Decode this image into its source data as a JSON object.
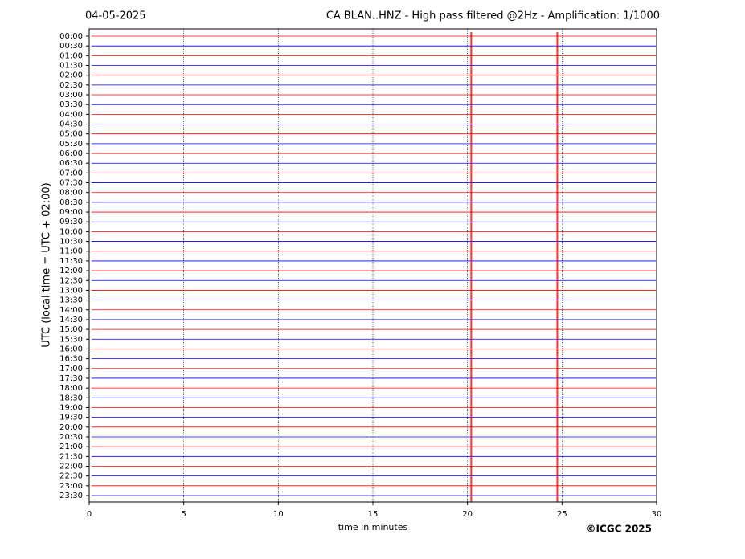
{
  "chart_data": {
    "type": "helicorder",
    "date": "04-05-2025",
    "title": "CA.BLAN..HNZ - High pass filtered @2Hz - Amplification: 1/1000",
    "ylabel": "UTC (local time = UTC + 02:00)",
    "xlabel": "time in minutes",
    "credit": "©ICGC 2025",
    "categories": [
      "00:00",
      "00:30",
      "01:00",
      "01:30",
      "02:00",
      "02:30",
      "03:00",
      "03:30",
      "04:00",
      "04:30",
      "05:00",
      "05:30",
      "06:00",
      "06:30",
      "07:00",
      "07:30",
      "08:00",
      "08:30",
      "09:00",
      "09:30",
      "10:00",
      "10:30",
      "11:00",
      "11:30",
      "12:00",
      "12:30",
      "13:00",
      "13:30",
      "14:00",
      "14:30",
      "15:00",
      "15:30",
      "16:00",
      "16:30",
      "17:00",
      "17:30",
      "18:00",
      "18:30",
      "19:00",
      "19:30",
      "20:00",
      "20:30",
      "21:00",
      "21:30",
      "22:00",
      "22:30",
      "23:00",
      "23:30"
    ],
    "colors": [
      "#ff0000",
      "#0000ff"
    ],
    "xlim": [
      0,
      30
    ],
    "xticks": [
      0,
      5,
      10,
      15,
      20,
      25,
      30
    ],
    "grid": true,
    "events": [
      20.2,
      24.75
    ]
  }
}
